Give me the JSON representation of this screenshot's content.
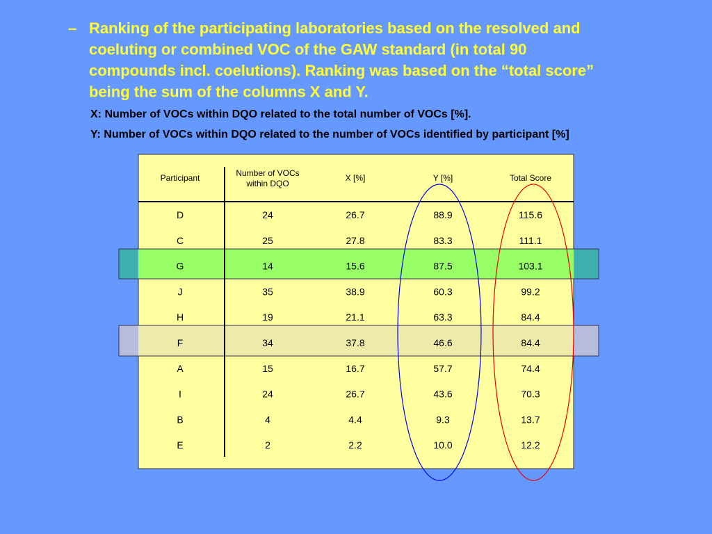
{
  "bullet": "–",
  "heading_lines": [
    "Ranking of the participating laboratories based on the resolved and",
    "coeluting or combined VOC of the GAW standard (in total 90",
    "compounds incl. coelutions). Ranking was based on the “total score”",
    "being the sum of the columns X and Y."
  ],
  "notes": [
    "X: Number of VOCs within DQO related to the total number of VOCs [%].",
    "Y: Number of VOCs within DQO related to the number of VOCs identified by participant [%]"
  ],
  "table": {
    "header": [
      "Participant",
      "Number of VOCs\nwithin DQO",
      "X [%]",
      "Y [%]",
      "Total Score"
    ],
    "rows": [
      [
        "D",
        "24",
        "26.7",
        "88.9",
        "115.6"
      ],
      [
        "C",
        "25",
        "27.8",
        "83.3",
        "111.1"
      ],
      [
        "G",
        "14",
        "15.6",
        "87.5",
        "103.1"
      ],
      [
        "J",
        "35",
        "38.9",
        "60.3",
        "99.2"
      ],
      [
        "H",
        "19",
        "21.1",
        "63.3",
        "84.4"
      ],
      [
        "F",
        "34",
        "37.8",
        "46.6",
        "84.4"
      ],
      [
        "A",
        "15",
        "16.7",
        "57.7",
        "74.4"
      ],
      [
        "I",
        "24",
        "26.7",
        "43.6",
        "70.3"
      ],
      [
        "B",
        "4",
        "4.4",
        "9.3",
        "13.7"
      ],
      [
        "E",
        "2",
        "2.2",
        "10.0",
        "12.2"
      ]
    ]
  }
}
